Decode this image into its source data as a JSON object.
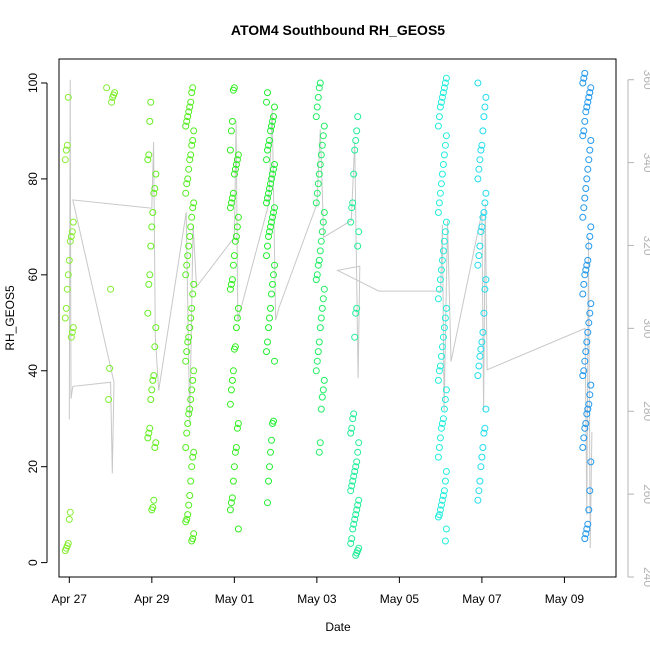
{
  "chart_data": {
    "type": "scatter",
    "title": "ATOM4 Southbound RH_GEOS5",
    "xlabel": "Date",
    "ylabel": "RH_GEOS5",
    "xlim": [
      "2017-04-26T18:00",
      "2017-05-10T06:00"
    ],
    "ylim": [
      -3,
      105
    ],
    "yticks": [
      0,
      20,
      40,
      60,
      80,
      100
    ],
    "xticks": [
      {
        "date": "2017-04-27",
        "label": "Apr 27"
      },
      {
        "date": "2017-04-29",
        "label": "Apr 29"
      },
      {
        "date": "2017-05-01",
        "label": "May 01"
      },
      {
        "date": "2017-05-03",
        "label": "May 03"
      },
      {
        "date": "2017-05-05",
        "label": "May 05"
      },
      {
        "date": "2017-05-07",
        "label": "May 07"
      },
      {
        "date": "2017-05-09",
        "label": "May 09"
      }
    ],
    "right_axis": {
      "ylim": [
        240,
        365
      ],
      "ticks": [
        240,
        260,
        280,
        300,
        320,
        340,
        360
      ],
      "color": "#b4b4b4"
    },
    "grid": false,
    "marker": "open-circle",
    "line_color": "#c8c8c8",
    "point_clusters": [
      {
        "date": "2017-04-27T00:00",
        "color": "#88ee33",
        "values": [
          2.5,
          3,
          3.5,
          4,
          9,
          10.5,
          47,
          48,
          49,
          51,
          53,
          57,
          60,
          63,
          67,
          68,
          69,
          71,
          84,
          86,
          87,
          97
        ]
      },
      {
        "date": "2017-04-28T00:00",
        "color": "#80ee30",
        "values": [
          34,
          40.5,
          57,
          96,
          97,
          97.5,
          98,
          99
        ]
      },
      {
        "date": "2017-04-29T00:00",
        "color": "#66ee22",
        "values": [
          11,
          11.5,
          13,
          24,
          25,
          26,
          27,
          28,
          34,
          36,
          38,
          39,
          45,
          49,
          52,
          58,
          60,
          66,
          70,
          73,
          77,
          78,
          81,
          84,
          85,
          92,
          96
        ]
      },
      {
        "date": "2017-04-29T22:00",
        "color": "#55ee22",
        "values": [
          4.5,
          5,
          6,
          8.5,
          9,
          10,
          12,
          14,
          17,
          20,
          22,
          23,
          24,
          27,
          29,
          31,
          32,
          34,
          36,
          38,
          40,
          42,
          44,
          46,
          47,
          49,
          51,
          53,
          56,
          58,
          60,
          62,
          64,
          66,
          68,
          70,
          72,
          74,
          75,
          77,
          79,
          80,
          82,
          84,
          85,
          87,
          88,
          90,
          91,
          92,
          93,
          94,
          95,
          96,
          98,
          99
        ]
      },
      {
        "date": "2017-05-01T00:00",
        "color": "#33ee22",
        "values": [
          7,
          11,
          12.5,
          13.5,
          17,
          20,
          23,
          24,
          28,
          29,
          33,
          36,
          38,
          40,
          44.5,
          45,
          49,
          51,
          53,
          57,
          58,
          59,
          62,
          64,
          67,
          68,
          70,
          72,
          74,
          75,
          76,
          77,
          81,
          82,
          83,
          84,
          85,
          86,
          90,
          92,
          98.5,
          99
        ]
      },
      {
        "date": "2017-05-01T21:00",
        "color": "#22ee33",
        "values": [
          12.5,
          17,
          20,
          23,
          25.5,
          29,
          29.5,
          42,
          44,
          46,
          49,
          51,
          53,
          56,
          58,
          60,
          62,
          64,
          66,
          68,
          69,
          70,
          71,
          72,
          73,
          74,
          75,
          76,
          77,
          78,
          79,
          80,
          81,
          82,
          83,
          84,
          86,
          87,
          88,
          90,
          91,
          92,
          93,
          95,
          96,
          98
        ]
      },
      {
        "date": "2017-05-03T02:00",
        "color": "#22ee66",
        "values": [
          23,
          25,
          32,
          34.5,
          36,
          38,
          40,
          42,
          44,
          46,
          49,
          51,
          53,
          55,
          57,
          59,
          60,
          62,
          63,
          65,
          67,
          69,
          71,
          73,
          75,
          77,
          79,
          81,
          83,
          85,
          87,
          89,
          91,
          93,
          95,
          97,
          99,
          100
        ]
      },
      {
        "date": "2017-05-03T22:00",
        "color": "#22ee99",
        "values": [
          1.5,
          2,
          2.5,
          3,
          4,
          5,
          7,
          8,
          9,
          10,
          11,
          12,
          13,
          15,
          16,
          17,
          18,
          19,
          20,
          21,
          23,
          25,
          27,
          28,
          30,
          31,
          47,
          52,
          53,
          66,
          69,
          71,
          74,
          75,
          81,
          86,
          88,
          90,
          93
        ]
      },
      {
        "date": "2017-05-06T01:00",
        "color": "#22eedd",
        "values": [
          4.5,
          7,
          9.5,
          10,
          11,
          12,
          13,
          14,
          15,
          17,
          19,
          22,
          24,
          26,
          28,
          29,
          30,
          32,
          34,
          36,
          38,
          40,
          41,
          43,
          45,
          47,
          49,
          51,
          53,
          55,
          57,
          59,
          61,
          63,
          65,
          67,
          69,
          71,
          73,
          75,
          77,
          79,
          81,
          83,
          85,
          87,
          89,
          91,
          93,
          95,
          96,
          97,
          98,
          99,
          100,
          101
        ]
      },
      {
        "date": "2017-05-07T00:00",
        "color": "#22ddee",
        "values": [
          13,
          15,
          17,
          20,
          22,
          24,
          27,
          28,
          32,
          39,
          41,
          43,
          44.5,
          46,
          48,
          52,
          57,
          59,
          62,
          64,
          66,
          69,
          70,
          72,
          73,
          75,
          77,
          80,
          82,
          84,
          86,
          87,
          90,
          93,
          95,
          97,
          100
        ]
      },
      {
        "date": "2017-05-09T13:00",
        "color": "#2299ee",
        "values": [
          5,
          6,
          7,
          8,
          11,
          15,
          21,
          24,
          26,
          28,
          29,
          31,
          32,
          33,
          35,
          37,
          39,
          40,
          42,
          44,
          46,
          48,
          50,
          52,
          54,
          56,
          58,
          60,
          61,
          62,
          63,
          66,
          68,
          70,
          72,
          74,
          76,
          78,
          80,
          82,
          84,
          86,
          88,
          89,
          90,
          92,
          94,
          95,
          96,
          97,
          98,
          99,
          100,
          101,
          102
        ]
      }
    ],
    "line_series": {
      "name": "",
      "axis": "right",
      "points": [
        [
          "2017-04-27T00:00",
          278
        ],
        [
          "2017-04-27T00:30",
          360
        ],
        [
          "2017-04-27T01:00",
          283
        ],
        [
          "2017-04-27T02:00",
          286
        ],
        [
          "2017-04-28T00:00",
          287
        ],
        [
          "2017-04-28T01:00",
          265
        ],
        [
          "2017-04-28T02:00",
          287
        ],
        [
          "2017-04-27T02:00",
          331
        ],
        [
          "2017-04-29T00:00",
          329
        ],
        [
          "2017-04-29T01:00",
          345
        ],
        [
          "2017-04-29T02:00",
          298
        ],
        [
          "2017-04-29T04:00",
          285
        ],
        [
          "2017-04-29T20:00",
          328
        ],
        [
          "2017-04-29T22:00",
          277
        ],
        [
          "2017-04-30T00:00",
          325
        ],
        [
          "2017-04-30T02:00",
          310
        ],
        [
          "2017-05-01T00:00",
          322
        ],
        [
          "2017-05-01T01:00",
          350
        ],
        [
          "2017-05-01T02:00",
          302
        ],
        [
          "2017-05-01T20:00",
          330
        ],
        [
          "2017-05-01T22:00",
          353
        ],
        [
          "2017-05-02T00:00",
          302
        ],
        [
          "2017-05-02T02:00",
          305
        ],
        [
          "2017-05-03T00:00",
          330
        ],
        [
          "2017-05-03T02:00",
          348
        ],
        [
          "2017-05-03T04:00",
          322
        ],
        [
          "2017-05-03T20:00",
          326
        ],
        [
          "2017-05-03T22:00",
          345
        ],
        [
          "2017-05-04T00:00",
          288
        ],
        [
          "2017-05-04T01:00",
          315
        ],
        [
          "2017-05-03T12:00",
          314
        ],
        [
          "2017-05-04T12:00",
          309
        ],
        [
          "2017-05-05T12:00",
          309
        ],
        [
          "2017-05-06T00:00",
          309
        ],
        [
          "2017-05-06T01:00",
          325
        ],
        [
          "2017-05-06T02:00",
          280
        ],
        [
          "2017-05-06T04:00",
          326
        ],
        [
          "2017-05-06T06:00",
          292
        ],
        [
          "2017-05-07T00:00",
          328
        ],
        [
          "2017-05-07T01:00",
          280
        ],
        [
          "2017-05-07T02:00",
          330
        ],
        [
          "2017-05-07T03:00",
          290
        ],
        [
          "2017-05-09T12:00",
          300
        ],
        [
          "2017-05-09T13:00",
          255
        ],
        [
          "2017-05-09T14:00",
          322
        ],
        [
          "2017-05-09T15:00",
          247
        ],
        [
          "2017-05-09T16:00",
          275
        ]
      ]
    }
  }
}
